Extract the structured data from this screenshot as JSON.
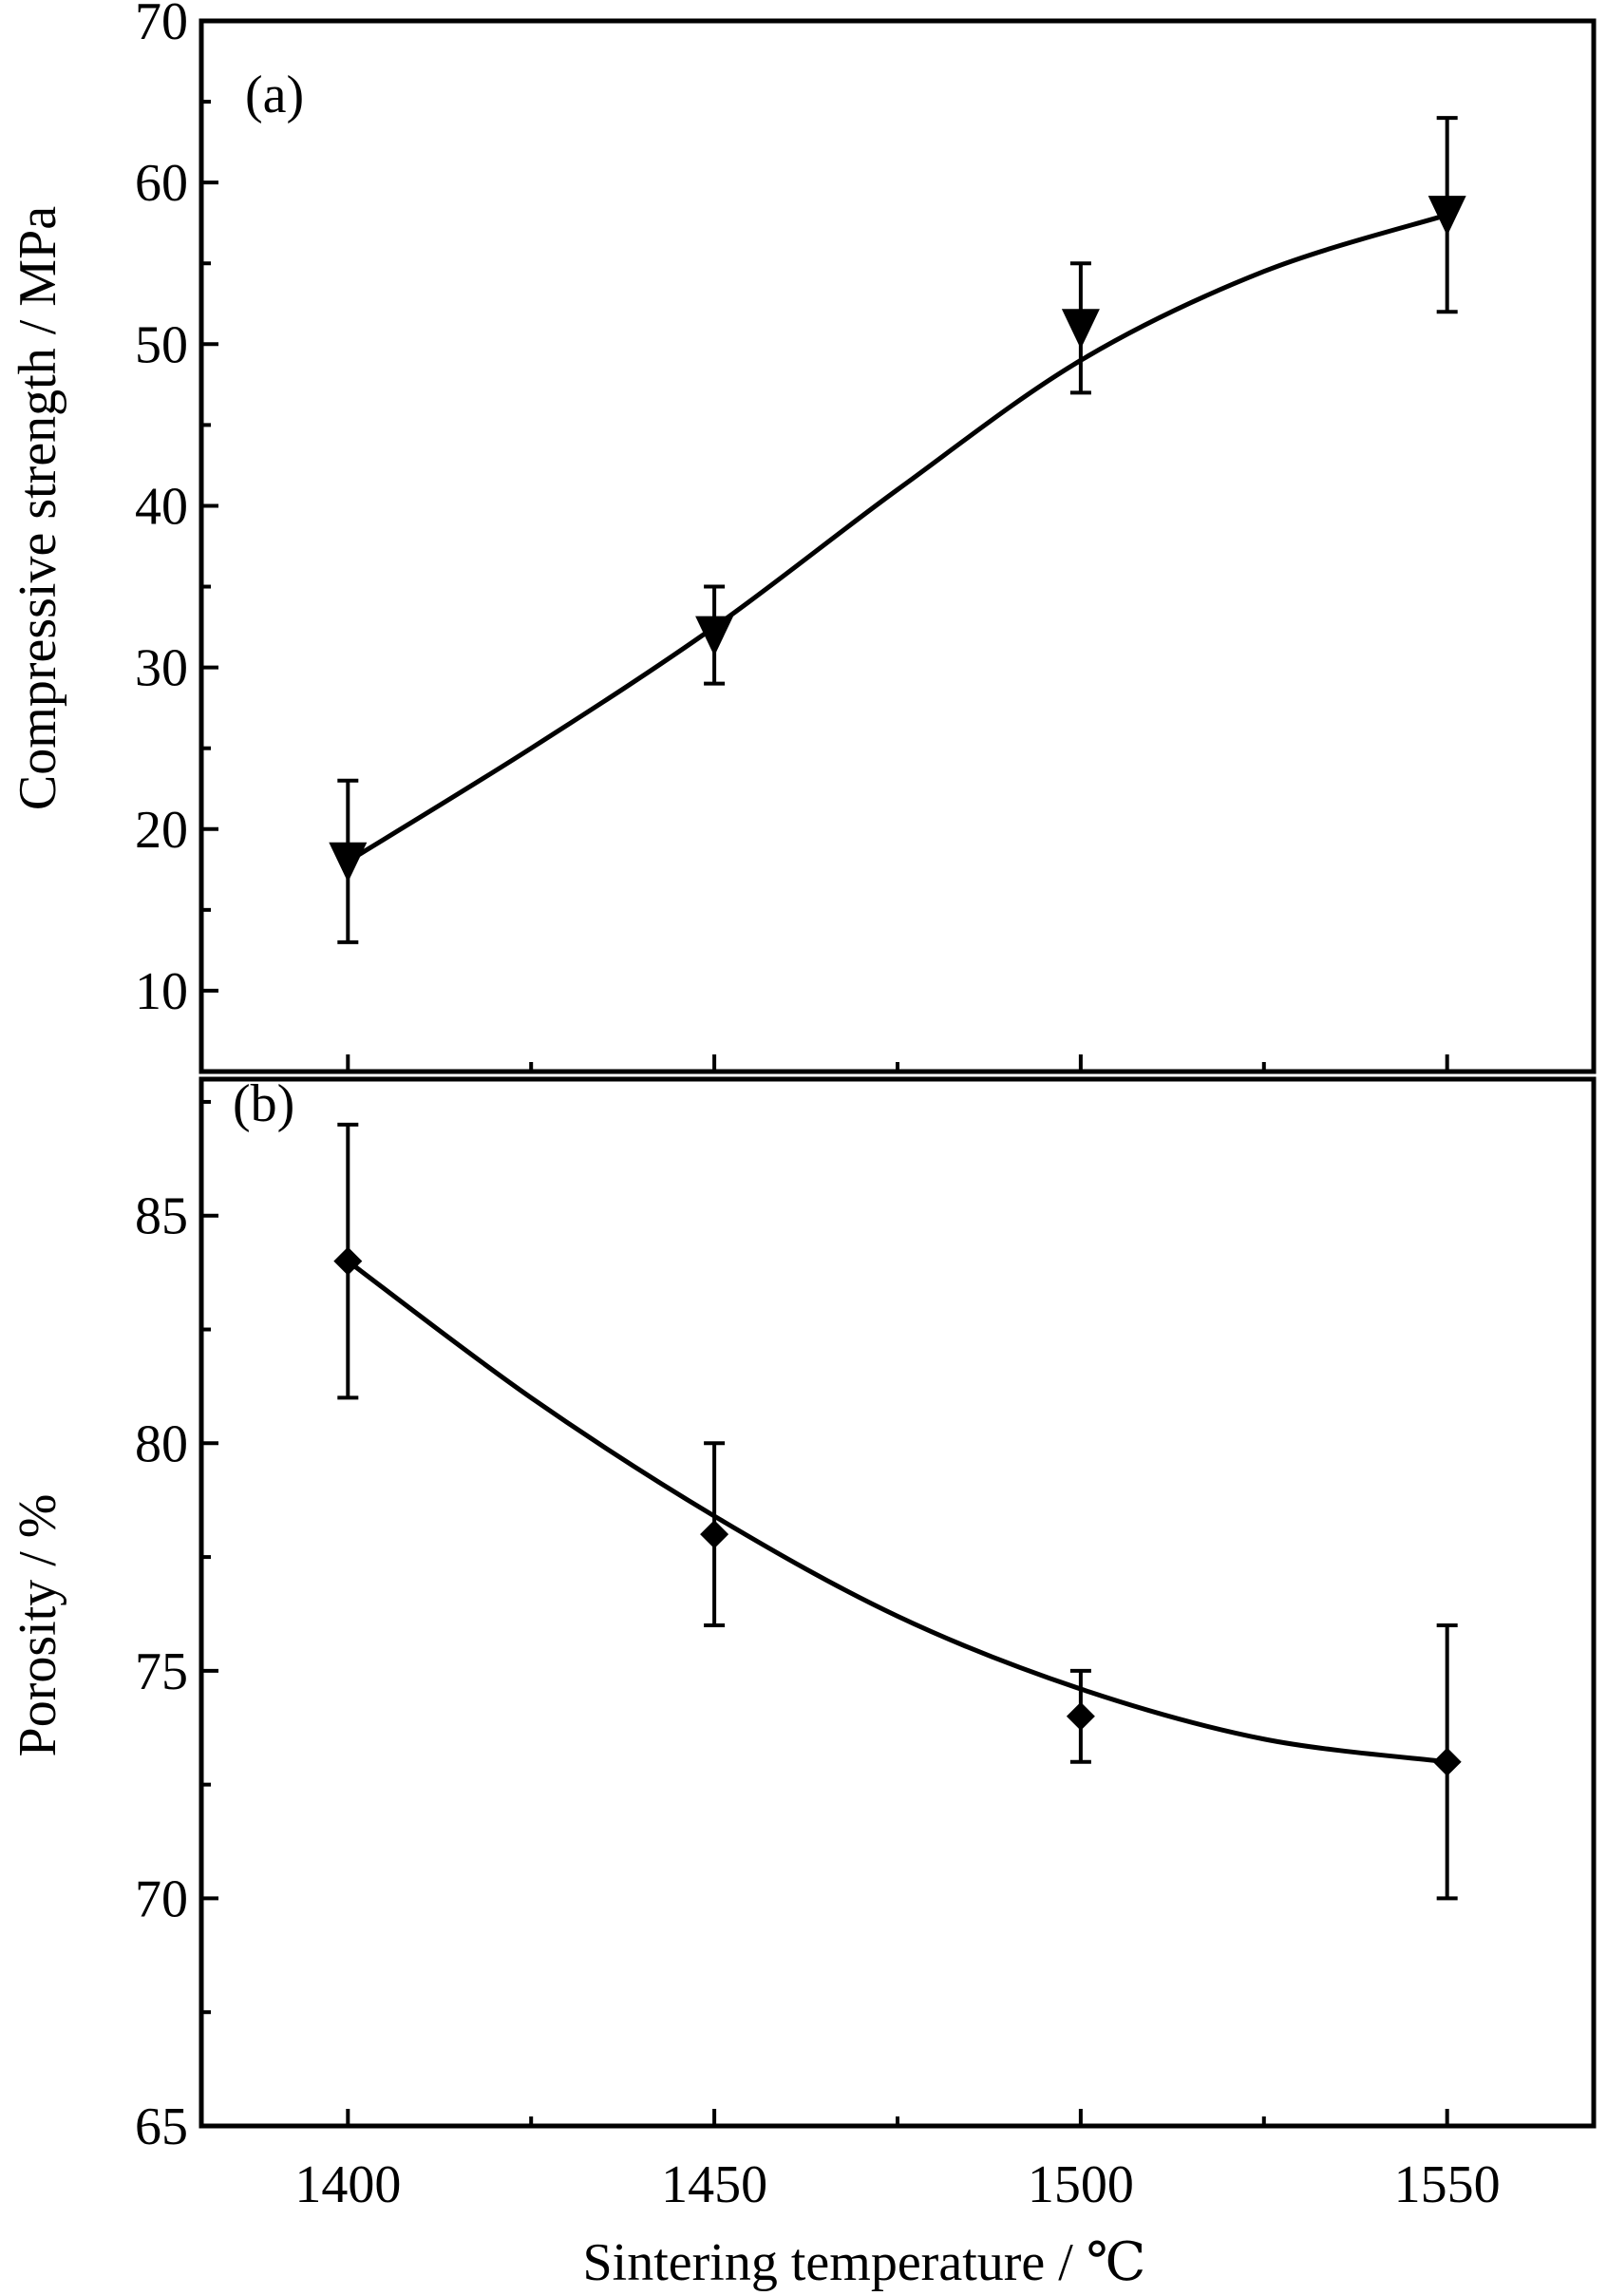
{
  "chart_data": [
    {
      "type": "line",
      "panel_label": "(a)",
      "title": "",
      "ylabel": "Compressive strength / MPa",
      "xlabel": "",
      "ylim": [
        5,
        70
      ],
      "yticks": [
        10,
        20,
        30,
        40,
        50,
        60,
        70
      ],
      "xlim": [
        1380,
        1570
      ],
      "x": [
        1400,
        1450,
        1500,
        1550
      ],
      "series": [
        {
          "name": "Compressive strength",
          "marker": "triangle-down",
          "values": [
            18,
            32,
            51,
            58
          ],
          "error_low": [
            13,
            29,
            47,
            52
          ],
          "error_high": [
            23,
            35,
            55,
            64
          ]
        }
      ],
      "fit_curve": {
        "x": [
          1400,
          1425,
          1450,
          1475,
          1500,
          1525,
          1550
        ],
        "y": [
          18,
          25,
          32.5,
          41,
          49,
          54.5,
          58
        ]
      }
    },
    {
      "type": "line",
      "panel_label": "(b)",
      "title": "",
      "ylabel": "Porosity / %",
      "xlabel": "Sintering temperature / ℃",
      "ylim": [
        65,
        88
      ],
      "yticks": [
        65,
        70,
        75,
        80,
        85
      ],
      "xlim": [
        1380,
        1570
      ],
      "x": [
        1400,
        1450,
        1500,
        1550
      ],
      "xticks": [
        "1400",
        "1450",
        "1500",
        "1550"
      ],
      "series": [
        {
          "name": "Porosity",
          "marker": "diamond",
          "values": [
            84,
            78,
            74,
            73
          ],
          "error_low": [
            81,
            76,
            73,
            70
          ],
          "error_high": [
            87,
            80,
            75,
            76
          ]
        }
      ],
      "fit_curve": {
        "x": [
          1400,
          1425,
          1450,
          1475,
          1500,
          1525,
          1550
        ],
        "y": [
          84,
          81,
          78.4,
          76.2,
          74.6,
          73.5,
          73
        ]
      }
    }
  ]
}
